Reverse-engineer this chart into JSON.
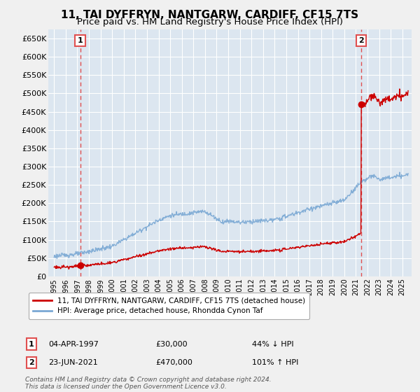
{
  "title": "11, TAI DYFFRYN, NANTGARW, CARDIFF, CF15 7TS",
  "subtitle": "Price paid vs. HM Land Registry's House Price Index (HPI)",
  "legend_line1": "11, TAI DYFFRYN, NANTGARW, CARDIFF, CF15 7TS (detached house)",
  "legend_line2": "HPI: Average price, detached house, Rhondda Cynon Taf",
  "annotation1_label": "1",
  "annotation1_date": "04-APR-1997",
  "annotation1_price": "£30,000",
  "annotation1_hpi": "44% ↓ HPI",
  "annotation1_year": 1997.25,
  "annotation1_value": 30000,
  "annotation2_label": "2",
  "annotation2_date": "23-JUN-2021",
  "annotation2_price": "£470,000",
  "annotation2_hpi": "101% ↑ HPI",
  "annotation2_year": 2021.47,
  "annotation2_value": 470000,
  "ylabel_ticks": [
    "£0",
    "£50K",
    "£100K",
    "£150K",
    "£200K",
    "£250K",
    "£300K",
    "£350K",
    "£400K",
    "£450K",
    "£500K",
    "£550K",
    "£600K",
    "£650K"
  ],
  "ytick_values": [
    0,
    50000,
    100000,
    150000,
    200000,
    250000,
    300000,
    350000,
    400000,
    450000,
    500000,
    550000,
    600000,
    650000
  ],
  "ylim": [
    0,
    675000
  ],
  "xlim_start": 1994.5,
  "xlim_end": 2025.8,
  "red_line_color": "#cc0000",
  "blue_line_color": "#7aa8d4",
  "vline_color": "#e05050",
  "background_color": "#dce6f0",
  "grid_color": "#ffffff",
  "plot_bg": "#dce6f0",
  "fig_bg": "#f0f0f0",
  "title_fontsize": 11,
  "subtitle_fontsize": 9.5,
  "footer": "Contains HM Land Registry data © Crown copyright and database right 2024.\nThis data is licensed under the Open Government Licence v3.0."
}
